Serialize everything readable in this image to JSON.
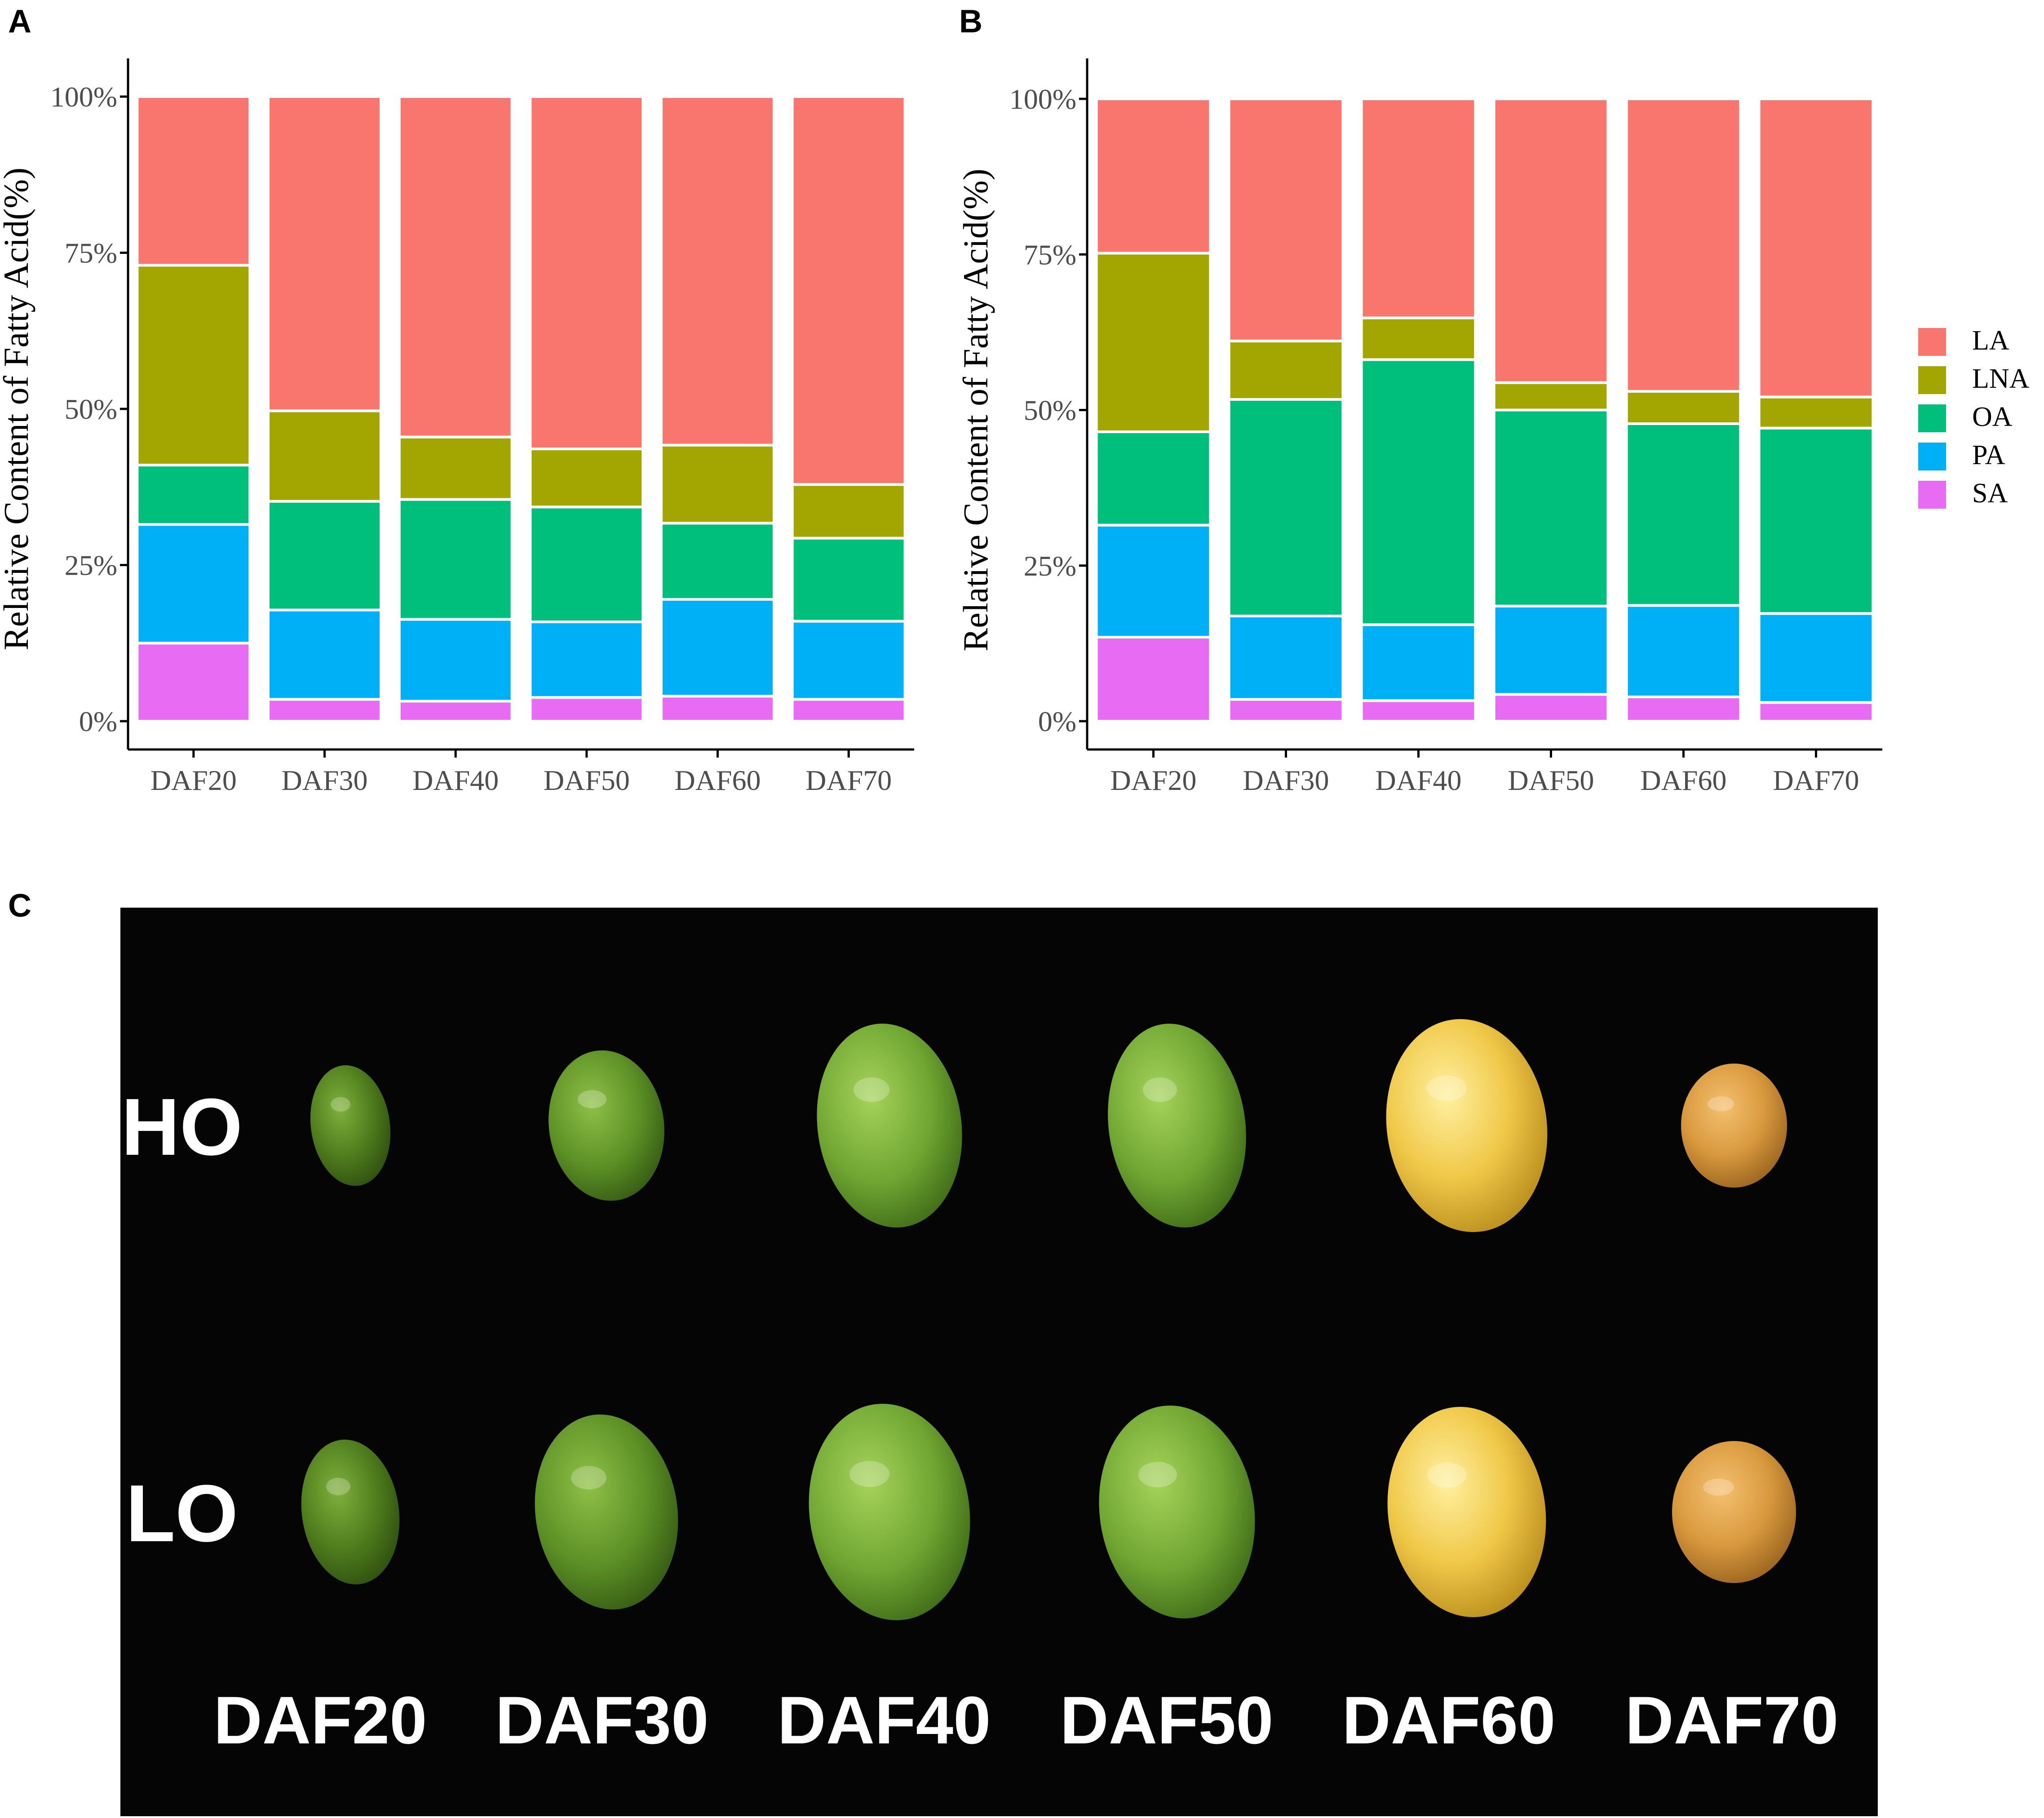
{
  "panels": {
    "a": "A",
    "b": "B",
    "c": "C"
  },
  "chart_data": [
    {
      "type": "bar",
      "stacked": true,
      "panel": "A",
      "categories": [
        "DAF20",
        "DAF30",
        "DAF40",
        "DAF50",
        "DAF60",
        "DAF70"
      ],
      "ylabel": "Relative Content of Fatty Acid(%)",
      "xlabel": "",
      "yticks": [
        "0%",
        "25%",
        "50%",
        "75%",
        "100%"
      ],
      "ylim": [
        0,
        100
      ],
      "series": [
        {
          "name": "SA",
          "values": [
            12.5,
            3.5,
            3.2,
            3.8,
            4.0,
            3.5
          ]
        },
        {
          "name": "PA",
          "values": [
            19.0,
            14.3,
            13.1,
            12.1,
            15.5,
            12.5
          ]
        },
        {
          "name": "OA",
          "values": [
            9.5,
            17.4,
            19.2,
            18.4,
            12.2,
            13.3
          ]
        },
        {
          "name": "LNA",
          "values": [
            32.0,
            14.5,
            10.0,
            9.3,
            12.5,
            8.6
          ]
        },
        {
          "name": "LA",
          "values": [
            27.0,
            50.3,
            54.5,
            56.4,
            55.8,
            62.1
          ]
        }
      ]
    },
    {
      "type": "bar",
      "stacked": true,
      "panel": "B",
      "categories": [
        "DAF20",
        "DAF30",
        "DAF40",
        "DAF50",
        "DAF60",
        "DAF70"
      ],
      "ylabel": "Relative Content of Fatty Acid(%)",
      "xlabel": "",
      "yticks": [
        "0%",
        "25%",
        "50%",
        "75%",
        "100%"
      ],
      "ylim": [
        0,
        100
      ],
      "legend_position": "right",
      "series": [
        {
          "name": "SA",
          "values": [
            13.5,
            3.5,
            3.3,
            4.3,
            3.9,
            3.0
          ]
        },
        {
          "name": "PA",
          "values": [
            18.0,
            13.4,
            12.2,
            14.2,
            14.7,
            14.3
          ]
        },
        {
          "name": "OA",
          "values": [
            15.0,
            34.8,
            42.6,
            31.5,
            29.2,
            29.8
          ]
        },
        {
          "name": "LNA",
          "values": [
            28.7,
            9.4,
            6.7,
            4.4,
            5.2,
            5.0
          ]
        },
        {
          "name": "LA",
          "values": [
            24.8,
            38.9,
            35.2,
            45.6,
            47.0,
            47.9
          ]
        }
      ]
    }
  ],
  "legend": [
    {
      "name": "LA",
      "color": "#F8766D"
    },
    {
      "name": "LNA",
      "color": "#A3A500"
    },
    {
      "name": "OA",
      "color": "#00BF7D"
    },
    {
      "name": "PA",
      "color": "#00B0F6"
    },
    {
      "name": "SA",
      "color": "#E76BF3"
    }
  ],
  "photo": {
    "rows": [
      {
        "label": "HO",
        "seeds": [
          "DAF20",
          "DAF30",
          "DAF40",
          "DAF50",
          "DAF60",
          "DAF70"
        ]
      },
      {
        "label": "LO",
        "seeds": [
          "DAF20",
          "DAF30",
          "DAF40",
          "DAF50",
          "DAF60",
          "DAF70"
        ]
      }
    ],
    "stage_labels": [
      "DAF20",
      "DAF30",
      "DAF40",
      "DAF50",
      "DAF60",
      "DAF70"
    ],
    "seed_colors": [
      "#4f7a1e",
      "#4e8a22",
      "#5f9a2e",
      "#5e9a2a",
      "#e8c040",
      "#d9a23e"
    ]
  }
}
